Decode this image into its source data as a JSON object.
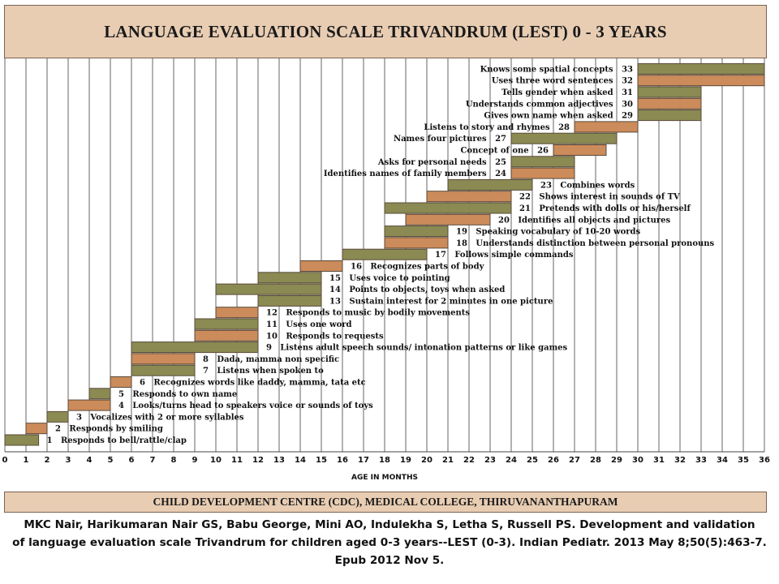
{
  "header": {
    "title": "LANGUAGE EVALUATION SCALE TRIVANDRUM (LEST) 0 - 3 YEARS"
  },
  "footer": {
    "label": "CHILD DEVELOPMENT CENTRE (CDC), MEDICAL COLLEGE, THIRUVANANTHAPURAM"
  },
  "citation": {
    "line1": "MKC Nair, Harikumaran Nair GS, Babu George, Mini AO, Indulekha S, Letha S, Russell PS. Development and validation",
    "line2": "of language evaluation scale Trivandrum for children aged 0-3 years--LEST (0-3). Indian Pediatr. 2013 May 8;50(5):463-7.",
    "line3": "Epub 2012 Nov 5."
  },
  "colors": {
    "olive": "#8a8a52",
    "orange": "#cc8b5a",
    "header_bg": "#e8cdb3",
    "border": "#5a4a3a"
  },
  "chart_data": {
    "type": "gantt",
    "xlabel": "AGE IN MONTHS",
    "xlim": [
      0,
      36
    ],
    "xticks": [
      "0",
      "1",
      "2",
      "3",
      "4",
      "5",
      "6",
      "7",
      "8",
      "9",
      "10",
      "11",
      "12",
      "13",
      "14",
      "15",
      "16",
      "17",
      "18",
      "19",
      "20",
      "21",
      "22",
      "23",
      "24",
      "25",
      "26",
      "27",
      "28",
      "29",
      "30",
      "31",
      "32",
      "33",
      "34",
      "35",
      "36"
    ],
    "grid": true,
    "items": [
      {
        "id": 1,
        "label": "Responds to bell/rattle/clap",
        "start": 0,
        "end": 1.6,
        "color": "olive",
        "label_side": "right"
      },
      {
        "id": 2,
        "label": "Responds by smiling",
        "start": 1,
        "end": 2,
        "color": "orange",
        "label_side": "right"
      },
      {
        "id": 3,
        "label": "Vocalizes with 2 or more syllables",
        "start": 2,
        "end": 3,
        "color": "olive",
        "label_side": "right"
      },
      {
        "id": 4,
        "label": "Looks/turns head to speakers voice or sounds of toys",
        "start": 3,
        "end": 5,
        "color": "orange",
        "label_side": "right"
      },
      {
        "id": 5,
        "label": "Responds to own name",
        "start": 4,
        "end": 5,
        "color": "olive",
        "label_side": "right"
      },
      {
        "id": 6,
        "label": "Recognizes words like daddy, mamma, tata etc",
        "start": 5,
        "end": 6,
        "color": "orange",
        "label_side": "right"
      },
      {
        "id": 7,
        "label": "Listens when spoken to",
        "start": 6,
        "end": 9,
        "color": "olive",
        "label_side": "right"
      },
      {
        "id": 8,
        "label": "Dada, mamma non specific",
        "start": 6,
        "end": 9,
        "color": "orange",
        "label_side": "right"
      },
      {
        "id": 9,
        "label": "Listens adult speech sounds/ intonation patterns or like games",
        "start": 6,
        "end": 12,
        "color": "olive",
        "label_side": "right"
      },
      {
        "id": 10,
        "label": "Responds to requests",
        "start": 9,
        "end": 12,
        "color": "orange",
        "label_side": "right"
      },
      {
        "id": 11,
        "label": "Uses one word",
        "start": 9,
        "end": 12,
        "color": "olive",
        "label_side": "right"
      },
      {
        "id": 12,
        "label": "Responds to music by bodily movements",
        "start": 10,
        "end": 12,
        "color": "orange",
        "label_side": "right"
      },
      {
        "id": 13,
        "label": "Sustain interest for 2 minutes in one picture",
        "start": 12,
        "end": 15,
        "color": "olive",
        "label_side": "right"
      },
      {
        "id": 14,
        "label": "Points to objects, toys when asked",
        "start": 10,
        "end": 15,
        "color": "olive",
        "label_side": "right"
      },
      {
        "id": 15,
        "label": "Uses voice to pointing",
        "start": 12,
        "end": 15,
        "color": "olive",
        "label_side": "right"
      },
      {
        "id": 16,
        "label": "Recognizes parts of body",
        "start": 14,
        "end": 16,
        "color": "orange",
        "label_side": "right"
      },
      {
        "id": 17,
        "label": "Follows simple commands",
        "start": 16,
        "end": 20,
        "color": "olive",
        "label_side": "right"
      },
      {
        "id": 18,
        "label": "Understands distinction between personal pronouns",
        "start": 18,
        "end": 21,
        "color": "orange",
        "label_side": "right"
      },
      {
        "id": 19,
        "label": "Speaking vocabulary of 10-20 words",
        "start": 18,
        "end": 21,
        "color": "olive",
        "label_side": "right"
      },
      {
        "id": 20,
        "label": "Identifies all objects and pictures",
        "start": 19,
        "end": 23,
        "color": "orange",
        "label_side": "right"
      },
      {
        "id": 21,
        "label": "Pretends with dolls or his/herself",
        "start": 18,
        "end": 24,
        "color": "olive",
        "label_side": "right"
      },
      {
        "id": 22,
        "label": "Shows interest in sounds of TV",
        "start": 20,
        "end": 24,
        "color": "orange",
        "label_side": "right"
      },
      {
        "id": 23,
        "label": "Combines words",
        "start": 21,
        "end": 25,
        "color": "olive",
        "label_side": "right"
      },
      {
        "id": 24,
        "label": "Identifies names of family members",
        "start": 24,
        "end": 27,
        "color": "orange",
        "label_side": "left"
      },
      {
        "id": 25,
        "label": "Asks for personal needs",
        "start": 24,
        "end": 27,
        "color": "olive",
        "label_side": "left"
      },
      {
        "id": 26,
        "label": "Concept of one",
        "start": 26,
        "end": 28.5,
        "color": "orange",
        "label_side": "left"
      },
      {
        "id": 27,
        "label": "Names four pictures",
        "start": 24,
        "end": 29,
        "color": "olive",
        "label_side": "left"
      },
      {
        "id": 28,
        "label": "Listens to story and rhymes",
        "start": 27,
        "end": 30,
        "color": "orange",
        "label_side": "left"
      },
      {
        "id": 29,
        "label": "Gives own name when asked",
        "start": 30,
        "end": 33,
        "color": "olive",
        "label_side": "left"
      },
      {
        "id": 30,
        "label": "Understands common adjectives",
        "start": 30,
        "end": 33,
        "color": "orange",
        "label_side": "left"
      },
      {
        "id": 31,
        "label": "Tells gender when asked",
        "start": 30,
        "end": 33,
        "color": "olive",
        "label_side": "left"
      },
      {
        "id": 32,
        "label": "Uses three word sentences",
        "start": 30,
        "end": 36,
        "color": "orange",
        "label_side": "left"
      },
      {
        "id": 33,
        "label": "Knows some spatial concepts",
        "start": 30,
        "end": 36,
        "color": "olive",
        "label_side": "left"
      }
    ]
  }
}
